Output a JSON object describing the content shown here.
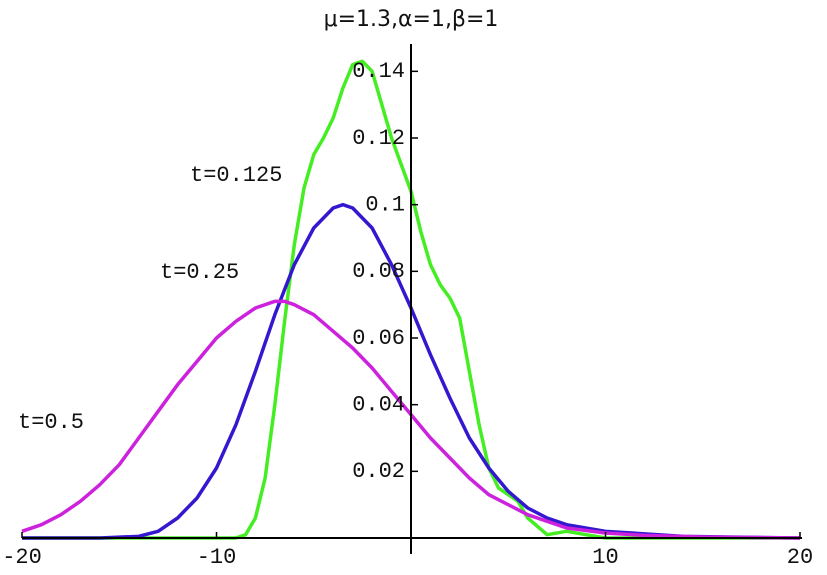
{
  "chart_data": {
    "type": "line",
    "title": "μ=1.3,α=1,β=1",
    "xlim": [
      -20,
      20
    ],
    "ylim": [
      0,
      0.15
    ],
    "xticks": [
      -20,
      -10,
      10,
      20
    ],
    "yticks": [
      0.02,
      0.04,
      0.06,
      0.08,
      0.1,
      0.12,
      0.14
    ],
    "series": [
      {
        "name": "t=0.125",
        "color": "#44ee22",
        "x": [
          -20,
          -10,
          -9,
          -8.5,
          -8,
          -7.5,
          -7,
          -6.5,
          -6,
          -5.5,
          -5,
          -4.5,
          -4,
          -3.5,
          -3,
          -2.5,
          -2,
          -1.5,
          -1,
          -0.5,
          0,
          0.5,
          1,
          1.5,
          2,
          2.5,
          3,
          3.5,
          4,
          4.5,
          5,
          5.5,
          6,
          7,
          8,
          9,
          10,
          20
        ],
        "values": [
          0,
          0,
          0,
          0.001,
          0.006,
          0.018,
          0.04,
          0.065,
          0.088,
          0.105,
          0.115,
          0.12,
          0.126,
          0.135,
          0.142,
          0.143,
          0.14,
          0.13,
          0.12,
          0.112,
          0.104,
          0.092,
          0.082,
          0.076,
          0.072,
          0.066,
          0.05,
          0.034,
          0.021,
          0.015,
          0.013,
          0.011,
          0.006,
          0.001,
          0.002,
          0.001,
          0,
          0
        ]
      },
      {
        "name": "t=0.25",
        "color": "#3318d0",
        "x": [
          -20,
          -16,
          -14,
          -13,
          -12,
          -11,
          -10,
          -9,
          -8,
          -7,
          -6,
          -5,
          -4,
          -3.5,
          -3,
          -2,
          -1,
          0,
          1,
          2,
          3,
          4,
          5,
          6,
          7,
          8,
          10,
          14,
          20
        ],
        "values": [
          0,
          0,
          0.0005,
          0.002,
          0.006,
          0.012,
          0.021,
          0.034,
          0.05,
          0.067,
          0.082,
          0.093,
          0.099,
          0.1,
          0.099,
          0.093,
          0.082,
          0.069,
          0.055,
          0.042,
          0.03,
          0.021,
          0.014,
          0.009,
          0.006,
          0.004,
          0.002,
          0.0005,
          0
        ]
      },
      {
        "name": "t=0.5",
        "color": "#cc22dd",
        "x": [
          -20,
          -19,
          -18,
          -17,
          -16,
          -15,
          -14,
          -13,
          -12,
          -11,
          -10,
          -9,
          -8,
          -7,
          -6.5,
          -6,
          -5,
          -4,
          -3,
          -2,
          -1,
          0,
          1,
          2,
          3,
          4,
          5,
          6,
          7,
          8,
          10,
          12,
          15,
          20
        ],
        "values": [
          0.002,
          0.004,
          0.007,
          0.011,
          0.016,
          0.022,
          0.03,
          0.038,
          0.046,
          0.053,
          0.06,
          0.065,
          0.069,
          0.071,
          0.071,
          0.07,
          0.067,
          0.062,
          0.057,
          0.051,
          0.044,
          0.037,
          0.03,
          0.024,
          0.018,
          0.013,
          0.01,
          0.007,
          0.005,
          0.003,
          0.0015,
          0.0008,
          0.0003,
          0
        ]
      }
    ]
  }
}
